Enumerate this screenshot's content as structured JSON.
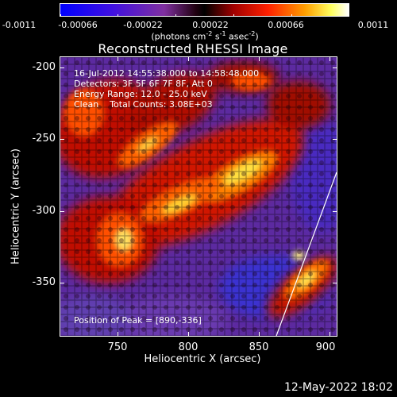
{
  "colorbar": {
    "tick_labels": [
      "-0.0011",
      "-0.00066",
      "-0.00022",
      "0.00022",
      "0.00066",
      "0.0011"
    ],
    "unit_text": "(photons cm",
    "unit_exp1": "-2",
    "unit_mid1": " s",
    "unit_exp2": "-1",
    "unit_mid2": " asec",
    "unit_exp3": "-2",
    "unit_end": ")"
  },
  "title": "Reconstructed RHESSI Image",
  "info": {
    "line1": "16-Jul-2012 14:55:38.000 to 14:58:48.000",
    "line2": "Detectors: 3F 5F 6F 7F 8F, Att 0",
    "line3": "Energy Range: 12.0 - 25.0 keV",
    "line4": "Clean    Total Counts: 3.08E+03"
  },
  "peak_text": "Position of Peak = [890,-336]",
  "axes": {
    "xlabel": "Heliocentric X (arcsec)",
    "ylabel": "Heliocentric Y (arcsec)",
    "xticks": [
      "750",
      "800",
      "850",
      "900"
    ],
    "yticks": [
      "-200",
      "-250",
      "-300",
      "-350"
    ],
    "xrange": [
      712,
      902
    ],
    "yrange": [
      -387,
      -193
    ]
  },
  "footer_date": "12-May-2022 18:02",
  "colors": {
    "negative_low": "#0000ff",
    "negative_high": "#6a20b0",
    "zero": "#000000",
    "positive_low": "#a00000",
    "positive_mid": "#ff3000",
    "positive_high": "#ffd000",
    "positive_max": "#ffffff"
  }
}
